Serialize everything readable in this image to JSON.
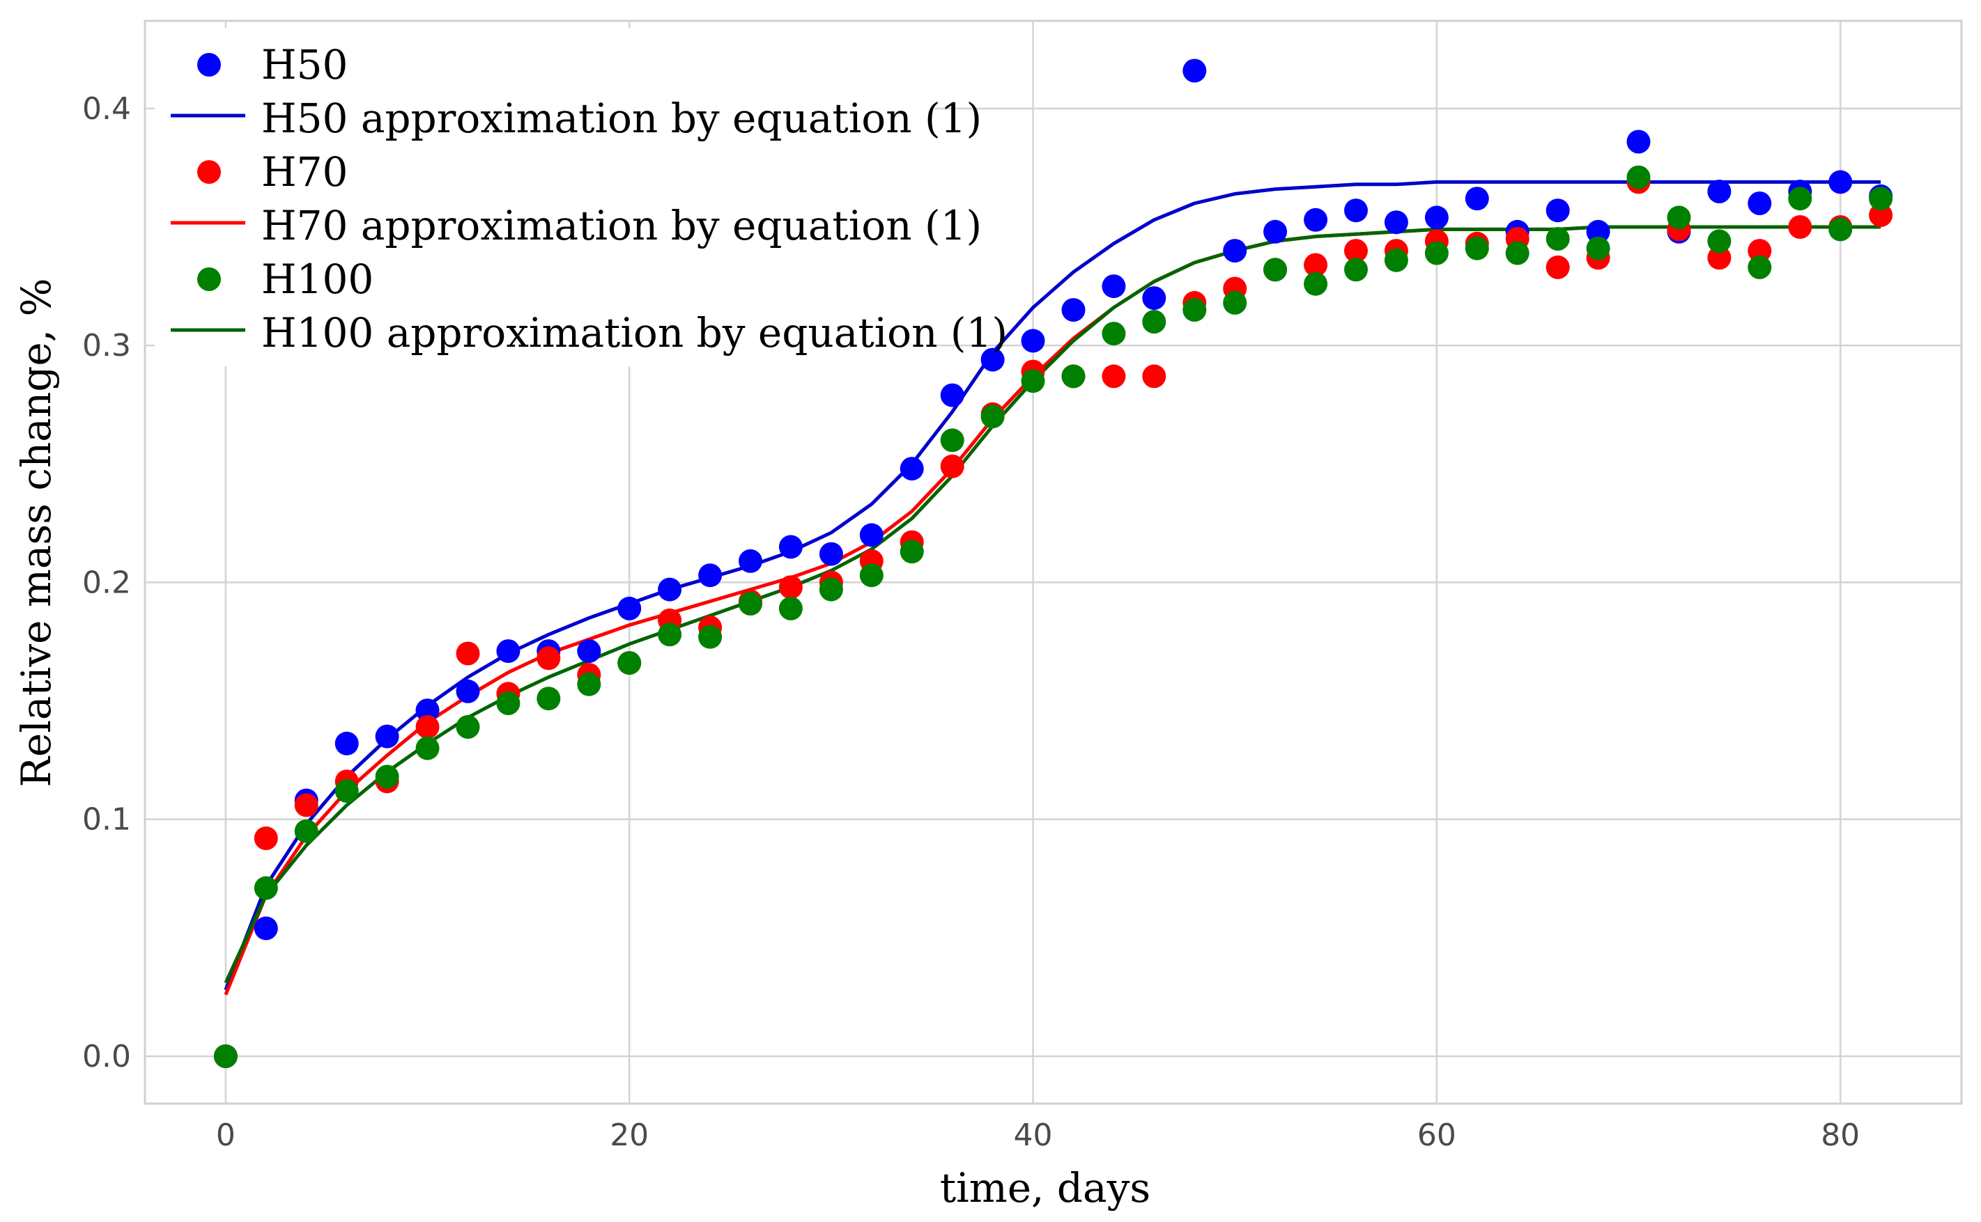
{
  "chart_data": {
    "type": "scatter",
    "title": "",
    "xlabel": "time, days",
    "ylabel": "Relative mass change, %",
    "xlim": [
      -4,
      86
    ],
    "ylim": [
      -0.02,
      0.437
    ],
    "xticks": [
      0,
      20,
      40,
      60,
      80
    ],
    "yticks": [
      0.0,
      0.1,
      0.2,
      0.3,
      0.4
    ],
    "xtick_labels": [
      "0",
      "20",
      "40",
      "60",
      "80"
    ],
    "ytick_labels": [
      "0.0",
      "0.1",
      "0.2",
      "0.3",
      "0.4"
    ],
    "grid": true,
    "legend_position": "top-left",
    "x": [
      0,
      2,
      4,
      6,
      8,
      10,
      12,
      14,
      16,
      18,
      20,
      22,
      24,
      26,
      28,
      30,
      32,
      34,
      36,
      38,
      40,
      42,
      44,
      46,
      48,
      50,
      52,
      54,
      56,
      58,
      60,
      62,
      64,
      66,
      68,
      70,
      72,
      74,
      76,
      78,
      80,
      82
    ],
    "series": [
      {
        "name": "H50",
        "kind": "scatter",
        "color": "#0000ff",
        "values": [
          0.0,
          0.054,
          0.108,
          0.132,
          0.135,
          0.146,
          0.154,
          0.171,
          0.171,
          0.171,
          0.189,
          0.197,
          0.203,
          0.209,
          0.215,
          0.212,
          0.22,
          0.248,
          0.279,
          0.294,
          0.302,
          0.315,
          0.325,
          0.32,
          0.416,
          0.34,
          0.348,
          0.353,
          0.357,
          0.352,
          0.354,
          0.362,
          0.348,
          0.357,
          0.348,
          0.386,
          0.348,
          0.365,
          0.36,
          0.365,
          0.369,
          0.363
        ]
      },
      {
        "name": "H50 approximation by equation (1)",
        "kind": "line",
        "color": "#0000cc",
        "x": [
          0,
          2,
          4,
          6,
          8,
          10,
          12,
          14,
          16,
          18,
          20,
          22,
          24,
          26,
          28,
          30,
          32,
          34,
          36,
          38,
          40,
          42,
          44,
          46,
          48,
          50,
          52,
          54,
          56,
          58,
          60,
          62,
          64,
          66,
          68,
          70,
          72,
          74,
          76,
          78,
          80,
          82
        ],
        "values": [
          0.028,
          0.072,
          0.098,
          0.118,
          0.134,
          0.148,
          0.16,
          0.17,
          0.178,
          0.185,
          0.191,
          0.197,
          0.202,
          0.207,
          0.213,
          0.221,
          0.233,
          0.25,
          0.272,
          0.297,
          0.316,
          0.331,
          0.343,
          0.353,
          0.36,
          0.364,
          0.366,
          0.367,
          0.368,
          0.368,
          0.369,
          0.369,
          0.369,
          0.369,
          0.369,
          0.369,
          0.369,
          0.369,
          0.369,
          0.369,
          0.369,
          0.369
        ]
      },
      {
        "name": "H70",
        "kind": "scatter",
        "color": "#ff0000",
        "values": [
          0.0,
          0.092,
          0.106,
          0.116,
          0.116,
          0.139,
          0.17,
          0.153,
          0.168,
          0.161,
          0.166,
          0.184,
          0.181,
          0.192,
          0.198,
          0.2,
          0.209,
          0.217,
          0.249,
          0.271,
          0.289,
          0.287,
          0.287,
          0.287,
          0.318,
          0.324,
          0.332,
          0.334,
          0.34,
          0.34,
          0.344,
          0.343,
          0.345,
          0.333,
          0.337,
          0.369,
          0.349,
          0.337,
          0.34,
          0.35,
          0.35,
          0.355
        ]
      },
      {
        "name": "H70 approximation by equation (1)",
        "kind": "line",
        "color": "#ff0000",
        "x": [
          0,
          2,
          4,
          6,
          8,
          10,
          12,
          14,
          16,
          18,
          20,
          22,
          24,
          26,
          28,
          30,
          32,
          34,
          36,
          38,
          40,
          42,
          44,
          46,
          48,
          50,
          52,
          54,
          56,
          58,
          60,
          62,
          64,
          66,
          68,
          70,
          72,
          74,
          76,
          78,
          80,
          82
        ],
        "values": [
          0.026,
          0.068,
          0.093,
          0.112,
          0.127,
          0.141,
          0.152,
          0.162,
          0.17,
          0.176,
          0.182,
          0.187,
          0.192,
          0.197,
          0.202,
          0.208,
          0.217,
          0.23,
          0.248,
          0.269,
          0.287,
          0.303,
          0.316,
          0.327,
          0.335,
          0.34,
          0.344,
          0.346,
          0.347,
          0.348,
          0.349,
          0.349,
          0.349,
          0.349,
          0.35,
          0.35,
          0.35,
          0.35,
          0.35,
          0.35,
          0.35,
          0.35
        ]
      },
      {
        "name": "H100",
        "kind": "scatter",
        "color": "#008000",
        "values": [
          0.0,
          0.071,
          0.095,
          0.112,
          0.118,
          0.13,
          0.139,
          0.149,
          0.151,
          0.157,
          0.166,
          0.178,
          0.177,
          0.191,
          0.189,
          0.197,
          0.203,
          0.213,
          0.26,
          0.27,
          0.285,
          0.287,
          0.305,
          0.31,
          0.315,
          0.318,
          0.332,
          0.326,
          0.332,
          0.336,
          0.339,
          0.341,
          0.339,
          0.345,
          0.341,
          0.371,
          0.354,
          0.344,
          0.333,
          0.362,
          0.349,
          0.362
        ]
      },
      {
        "name": "H100 approximation by equation (1)",
        "kind": "line",
        "color": "#006400",
        "x": [
          0,
          2,
          4,
          6,
          8,
          10,
          12,
          14,
          16,
          18,
          20,
          22,
          24,
          26,
          28,
          30,
          32,
          34,
          36,
          38,
          40,
          42,
          44,
          46,
          48,
          50,
          52,
          54,
          56,
          58,
          60,
          62,
          64,
          66,
          68,
          70,
          72,
          74,
          76,
          78,
          80,
          82
        ],
        "values": [
          0.031,
          0.068,
          0.089,
          0.106,
          0.12,
          0.132,
          0.143,
          0.152,
          0.16,
          0.167,
          0.174,
          0.18,
          0.186,
          0.192,
          0.198,
          0.205,
          0.214,
          0.227,
          0.245,
          0.266,
          0.285,
          0.302,
          0.316,
          0.327,
          0.335,
          0.34,
          0.344,
          0.346,
          0.347,
          0.348,
          0.349,
          0.349,
          0.349,
          0.349,
          0.35,
          0.35,
          0.35,
          0.35,
          0.35,
          0.35,
          0.35,
          0.35
        ]
      }
    ],
    "legend": [
      {
        "label": "H50",
        "kind": "marker",
        "color": "#0000ff"
      },
      {
        "label": "H50 approximation by equation (1)",
        "kind": "line",
        "color": "#0000cc"
      },
      {
        "label": "H70",
        "kind": "marker",
        "color": "#ff0000"
      },
      {
        "label": "H70 approximation by equation (1)",
        "kind": "line",
        "color": "#ff0000"
      },
      {
        "label": "H100",
        "kind": "marker",
        "color": "#008000"
      },
      {
        "label": "H100 approximation by equation (1)",
        "kind": "line",
        "color": "#006400"
      }
    ]
  }
}
